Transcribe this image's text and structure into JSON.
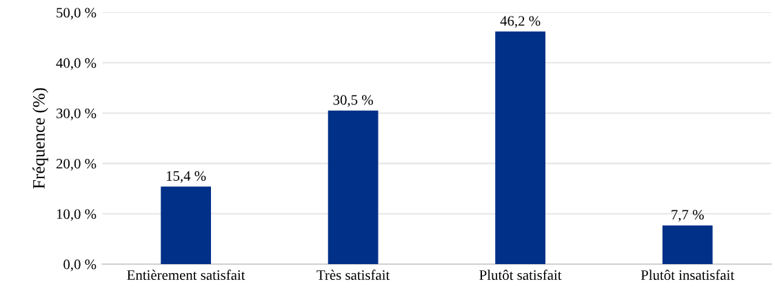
{
  "chart_data": {
    "type": "bar",
    "ylabel": "Fréquence (%)",
    "categories": [
      "Entièrement satisfait",
      "Très satisfait",
      "Plutôt satisfait",
      "Plutôt insatisfait"
    ],
    "values": [
      15.4,
      30.5,
      46.2,
      7.7
    ],
    "value_labels": [
      "15,4 %",
      "30,5 %",
      "46,2 %",
      "7,7 %"
    ],
    "color": "#003087",
    "ylim": [
      0,
      50
    ],
    "yticks": [
      {
        "value": 0,
        "label": "0,0 %"
      },
      {
        "value": 10,
        "label": "10,0 %"
      },
      {
        "value": 20,
        "label": "20,0 %"
      },
      {
        "value": 30,
        "label": "30,0 %"
      },
      {
        "value": 40,
        "label": "40,0 %"
      },
      {
        "value": 50,
        "label": "50,0 %"
      }
    ],
    "grid": "y",
    "legend": false
  }
}
